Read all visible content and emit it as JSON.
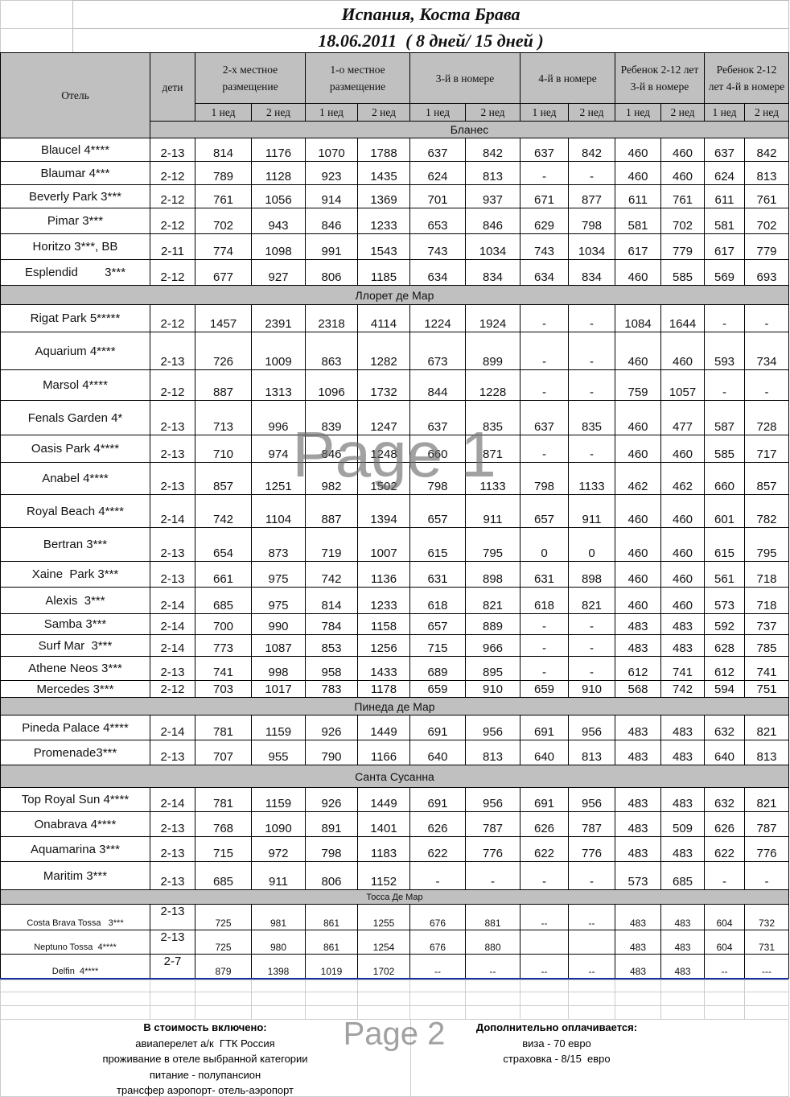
{
  "header": {
    "title": "Испания, Коста Брава",
    "date": "18.06.2011  ( 8 дней/ 15 дней )"
  },
  "table": {
    "columns": {
      "hotel": "Отель",
      "kids": "дети",
      "groups": [
        "2-х местное размещение",
        "1-о местное размещение",
        "3-й в номере",
        "4-й в номере",
        "Ребенок 2-12 лет 3-й в номере",
        "Ребенок 2-12 лет 4-й в номере"
      ],
      "weeks": [
        "1 нед",
        "2 нед",
        "1 нед",
        "2 нед",
        "1 нед",
        "2 нед",
        "1 нед",
        "2 нед",
        "1 нед",
        "2 нед",
        "1 нед",
        "2 нед"
      ]
    },
    "sections": [
      {
        "name": "Бланес",
        "rows": [
          {
            "hotel": "Blaucel 4****",
            "kids": "2-13",
            "prices": [
              814,
              1176,
              1070,
              1788,
              637,
              842,
              637,
              842,
              460,
              460,
              637,
              842
            ]
          },
          {
            "hotel": "Blaumar 4***",
            "kids": "2-12",
            "prices": [
              789,
              1128,
              923,
              1435,
              624,
              813,
              "-",
              "-",
              460,
              460,
              624,
              813
            ]
          },
          {
            "hotel": "Beverly Park 3***",
            "kids": "2-12",
            "prices": [
              761,
              1056,
              914,
              1369,
              701,
              937,
              671,
              877,
              611,
              761,
              611,
              761
            ]
          },
          {
            "hotel": "Pimar 3***",
            "kids": "2-12",
            "prices": [
              702,
              943,
              846,
              1233,
              653,
              846,
              629,
              798,
              581,
              702,
              581,
              702
            ]
          },
          {
            "hotel": "Horitzo 3***, BB",
            "kids": "2-11",
            "prices": [
              774,
              1098,
              991,
              1543,
              743,
              1034,
              743,
              1034,
              617,
              779,
              617,
              779
            ]
          },
          {
            "hotel": "Esplendid        3***",
            "kids": "2-12",
            "prices": [
              677,
              927,
              806,
              1185,
              634,
              834,
              634,
              834,
              460,
              585,
              569,
              693
            ]
          }
        ]
      },
      {
        "name": "Ллорет де Мар",
        "rows": [
          {
            "hotel": "Rigat Park 5*****",
            "kids": "2-12",
            "prices": [
              1457,
              2391,
              2318,
              4114,
              1224,
              1924,
              "-",
              "-",
              1084,
              1644,
              "-",
              "-"
            ]
          },
          {
            "hotel": "Aquarium 4****",
            "kids": "2-13",
            "prices": [
              726,
              1009,
              863,
              1282,
              673,
              899,
              "-",
              "-",
              460,
              460,
              593,
              734
            ]
          },
          {
            "hotel": "Marsol 4****",
            "kids": "2-12",
            "prices": [
              887,
              1313,
              1096,
              1732,
              844,
              1228,
              "-",
              "-",
              759,
              1057,
              "-",
              "-"
            ]
          },
          {
            "hotel": "Fenals Garden 4*",
            "kids": "2-13",
            "prices": [
              713,
              996,
              839,
              1247,
              637,
              835,
              637,
              835,
              460,
              477,
              587,
              728
            ]
          },
          {
            "hotel": "Oasis Park 4****",
            "kids": "2-13",
            "prices": [
              710,
              974,
              846,
              1248,
              660,
              871,
              "-",
              "-",
              460,
              460,
              585,
              717
            ]
          },
          {
            "hotel": "Anabel 4****",
            "kids": "2-13",
            "prices": [
              857,
              1251,
              982,
              1502,
              798,
              1133,
              798,
              1133,
              462,
              462,
              660,
              857
            ]
          },
          {
            "hotel": "Royal Beach 4****",
            "kids": "2-14",
            "prices": [
              742,
              1104,
              887,
              1394,
              657,
              911,
              657,
              911,
              460,
              460,
              601,
              782
            ]
          },
          {
            "hotel": "Bertran 3***",
            "kids": "2-13",
            "prices": [
              654,
              873,
              719,
              1007,
              615,
              795,
              0,
              0,
              460,
              460,
              615,
              795
            ]
          },
          {
            "hotel": "Xaine  Park 3***",
            "kids": "2-13",
            "prices": [
              661,
              975,
              742,
              1136,
              631,
              898,
              631,
              898,
              460,
              460,
              561,
              718
            ]
          },
          {
            "hotel": "Alexis  3***",
            "kids": "2-14",
            "prices": [
              685,
              975,
              814,
              1233,
              618,
              821,
              618,
              821,
              460,
              460,
              573,
              718
            ]
          },
          {
            "hotel": "Samba 3***",
            "kids": "2-14",
            "prices": [
              700,
              990,
              784,
              1158,
              657,
              889,
              "-",
              "-",
              483,
              483,
              592,
              737
            ]
          },
          {
            "hotel": "Surf Mar  3***",
            "kids": "2-14",
            "prices": [
              773,
              1087,
              853,
              1256,
              715,
              966,
              "-",
              "-",
              483,
              483,
              628,
              785
            ]
          },
          {
            "hotel": "Athene Neos 3***",
            "kids": "2-13",
            "prices": [
              741,
              998,
              958,
              1433,
              689,
              895,
              "-",
              "-",
              612,
              741,
              612,
              741
            ]
          },
          {
            "hotel": "Mercedes 3***",
            "kids": "2-12",
            "prices": [
              703,
              1017,
              783,
              1178,
              659,
              910,
              659,
              910,
              568,
              742,
              594,
              751
            ]
          }
        ]
      },
      {
        "name": "Пинеда де Мар",
        "rows": [
          {
            "hotel": "Pineda Palace 4****",
            "kids": "2-14",
            "prices": [
              781,
              1159,
              926,
              1449,
              691,
              956,
              691,
              956,
              483,
              483,
              632,
              821
            ]
          },
          {
            "hotel": "Promenade3***",
            "kids": "2-13",
            "prices": [
              707,
              955,
              790,
              1166,
              640,
              813,
              640,
              813,
              483,
              483,
              640,
              813
            ]
          }
        ]
      },
      {
        "name": "Санта Сусанна",
        "rows": [
          {
            "hotel": "Top Royal Sun 4****",
            "kids": "2-14",
            "prices": [
              781,
              1159,
              926,
              1449,
              691,
              956,
              691,
              956,
              483,
              483,
              632,
              821
            ]
          },
          {
            "hotel": "Onabrava 4****",
            "kids": "2-13",
            "prices": [
              768,
              1090,
              891,
              1401,
              626,
              787,
              626,
              787,
              483,
              509,
              626,
              787
            ]
          },
          {
            "hotel": "Aquamarina 3***",
            "kids": "2-13",
            "prices": [
              715,
              972,
              798,
              1183,
              622,
              776,
              622,
              776,
              483,
              483,
              622,
              776
            ]
          },
          {
            "hotel": "Maritim 3***",
            "kids": "2-13",
            "prices": [
              685,
              911,
              806,
              1152,
              "-",
              "-",
              "-",
              "-",
              573,
              685,
              "-",
              "-"
            ]
          }
        ]
      },
      {
        "name": "Тосса Де Мар",
        "rows": [
          {
            "hotel": "Costa Brava Tossa   3***",
            "kids": "2-13",
            "prices": [
              725,
              981,
              861,
              1255,
              676,
              881,
              "--",
              "--",
              483,
              483,
              604,
              732
            ]
          },
          {
            "hotel": "Neptuno Tossa  4****",
            "kids": "2-13",
            "prices": [
              725,
              980,
              861,
              1254,
              676,
              880,
              null,
              null,
              483,
              483,
              604,
              731
            ]
          },
          {
            "hotel": "Delfin  4****",
            "kids": "2-7",
            "prices": [
              879,
              1398,
              1019,
              1702,
              "--",
              "--",
              "--",
              "--",
              483,
              483,
              "--",
              "---"
            ]
          }
        ]
      }
    ]
  },
  "footer": {
    "included_title": "В стоимость включено:",
    "included": [
      "авиаперелет а/к  ГТК Россия",
      "проживание в отеле выбранной категории",
      "питание - полупансион",
      "трансфер аэропорт- отель-аэропорт"
    ],
    "extra_title": "Дополнительно оплачивается:",
    "extra": [
      "виза - 70 евро",
      "страховка - 8/15  евро"
    ]
  },
  "watermarks": [
    "Page 1",
    "Page 2"
  ]
}
